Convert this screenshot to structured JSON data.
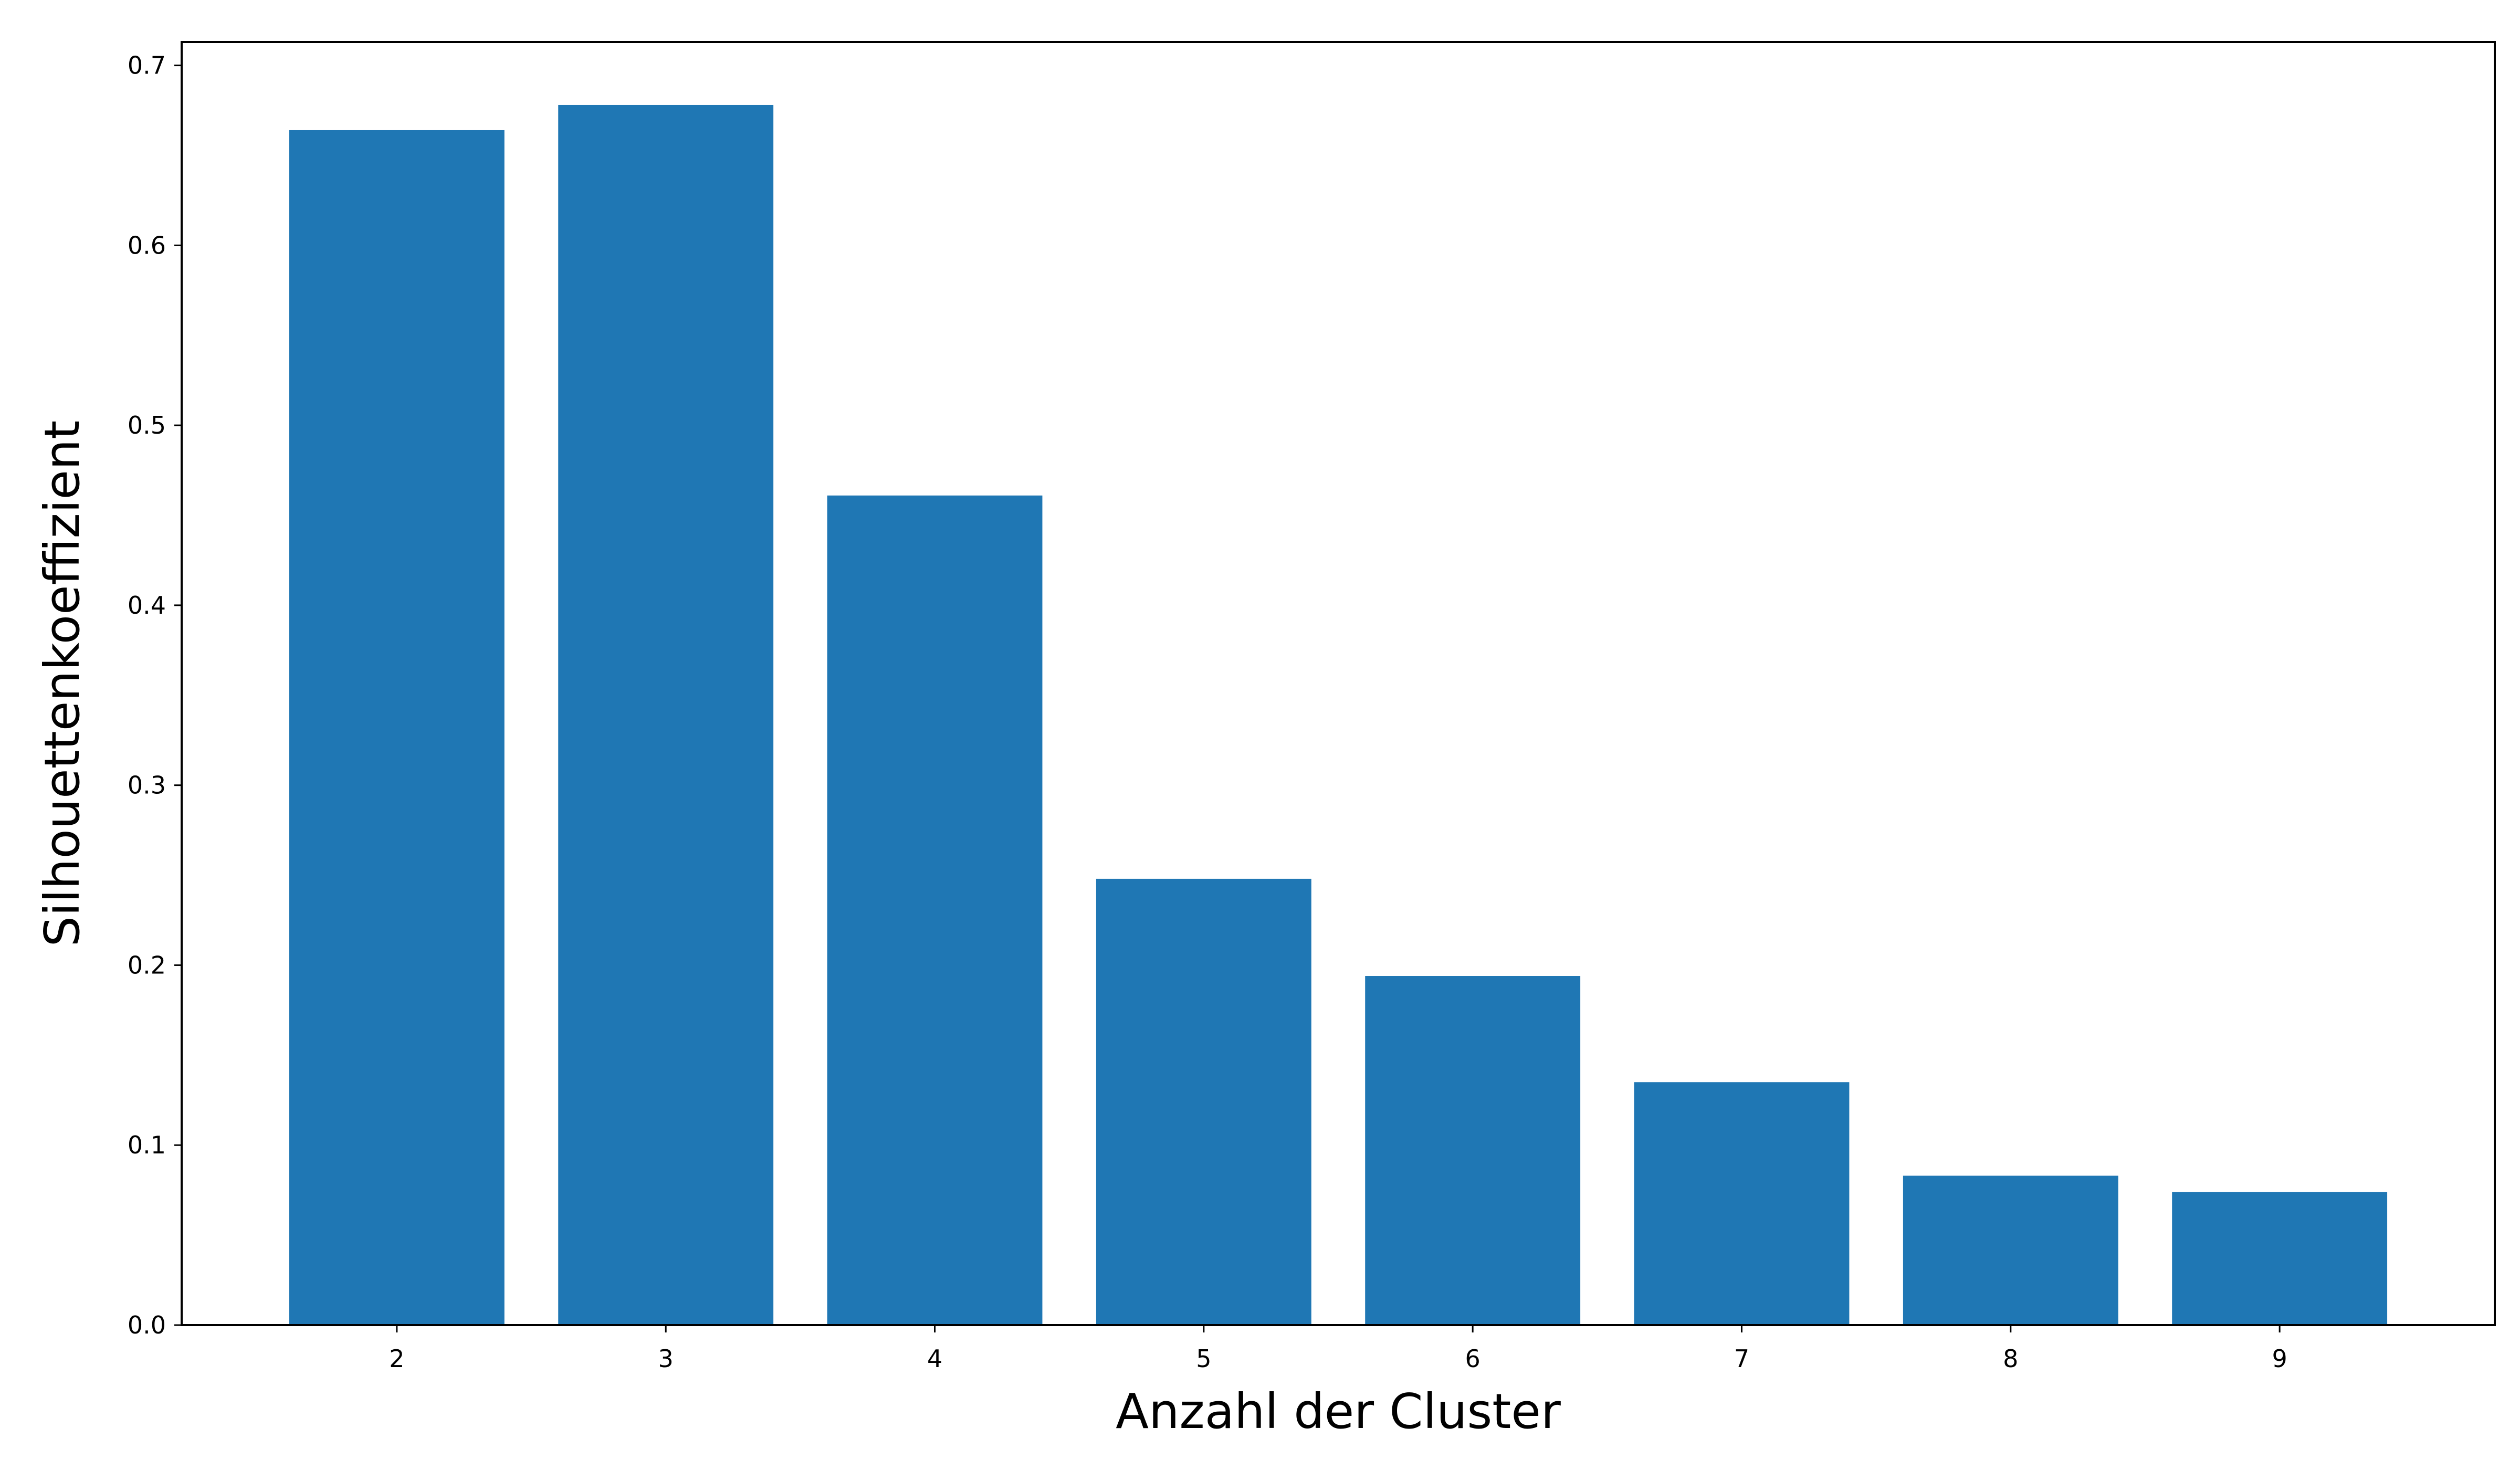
{
  "chart_data": {
    "type": "bar",
    "categories": [
      "2",
      "3",
      "4",
      "5",
      "6",
      "7",
      "8",
      "9"
    ],
    "values": [
      0.664,
      0.678,
      0.461,
      0.248,
      0.194,
      0.135,
      0.083,
      0.074
    ],
    "xlabel": "Anzahl der Cluster",
    "ylabel": "Silhouettenkoeffizient",
    "ylim": [
      0,
      0.713
    ],
    "yticks": [
      "0.0",
      "0.1",
      "0.2",
      "0.3",
      "0.4",
      "0.5",
      "0.6",
      "0.7"
    ],
    "bar_color": "#1f77b4",
    "grid": false,
    "legend": "none"
  }
}
